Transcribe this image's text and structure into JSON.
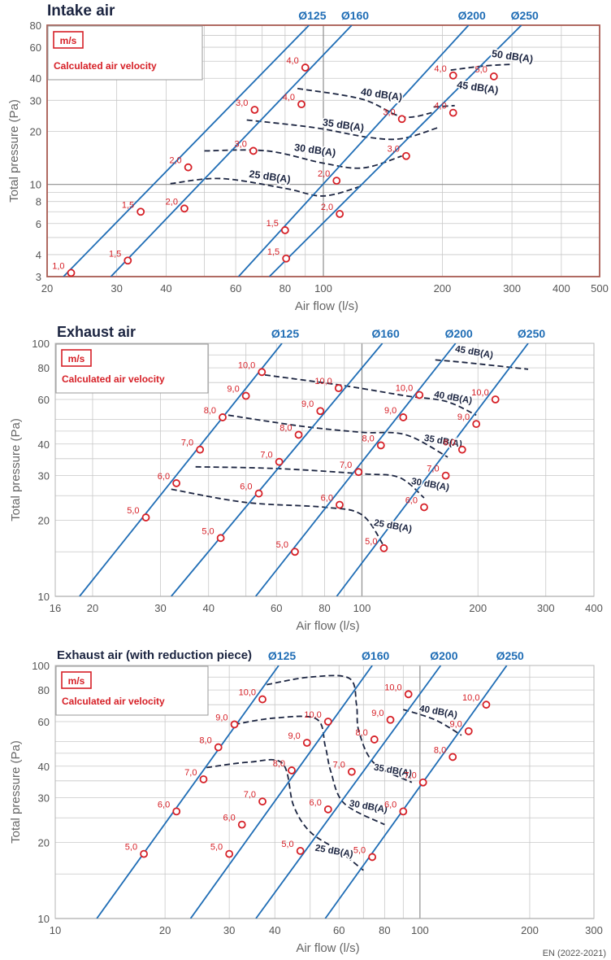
{
  "footer_code": "EN (2022-2021)",
  "colors": {
    "duct": "#1f6db5",
    "noise": "#1c2541",
    "marker": "#d62027",
    "grid": "#c8c8c8",
    "grid_major": "#8e8e8e",
    "frame_intake": "#a85a50"
  },
  "chart_data": [
    {
      "type": "line",
      "title": "Intake air",
      "xlabel": "Air flow (l/s)",
      "ylabel": "Total pressure (Pa)",
      "xscale": "log",
      "yscale": "log",
      "xlim": [
        20,
        500
      ],
      "ylim": [
        3,
        80
      ],
      "xticks": [
        20,
        30,
        40,
        60,
        80,
        100,
        200,
        300,
        400,
        500
      ],
      "yticks": [
        3,
        4,
        6,
        8,
        10,
        20,
        30,
        40,
        60,
        80
      ],
      "legend": {
        "box_label": "m/s",
        "text": "Calculated air velocity",
        "placement": "top-left"
      },
      "series": [
        {
          "name": "Ø125",
          "line": [
            [
              22,
              3.0
            ],
            [
              92,
              80
            ]
          ],
          "points": [
            {
              "v": "1,0",
              "x": 23,
              "y": 3.15
            },
            {
              "v": "1,5",
              "x": 34.5,
              "y": 7.0
            },
            {
              "v": "2,0",
              "x": 45.5,
              "y": 12.5
            },
            {
              "v": "3,0",
              "x": 67,
              "y": 26.5
            },
            {
              "v": "4,0",
              "x": 90,
              "y": 46
            }
          ]
        },
        {
          "name": "Ø160",
          "line": [
            [
              29,
              3.0
            ],
            [
              118,
              80
            ]
          ],
          "points": [
            {
              "v": "1,5",
              "x": 32,
              "y": 3.7
            },
            {
              "v": "2,0",
              "x": 44.5,
              "y": 7.3
            },
            {
              "v": "3,0",
              "x": 66.5,
              "y": 15.5
            },
            {
              "v": "4,0",
              "x": 88,
              "y": 28.5
            }
          ]
        },
        {
          "name": "Ø200",
          "line": [
            [
              61,
              3.0
            ],
            [
              233,
              80
            ]
          ],
          "points": [
            {
              "v": "1,5",
              "x": 80,
              "y": 5.5
            },
            {
              "v": "2,0",
              "x": 108,
              "y": 10.5
            },
            {
              "v": "3,0",
              "x": 158,
              "y": 23.5
            },
            {
              "v": "4,0",
              "x": 213,
              "y": 41.5
            }
          ]
        },
        {
          "name": "Ø250",
          "line": [
            [
              73,
              3.0
            ],
            [
              317,
              80
            ]
          ],
          "points": [
            {
              "v": "1,5",
              "x": 80.5,
              "y": 3.8
            },
            {
              "v": "2,0",
              "x": 110,
              "y": 6.8
            },
            {
              "v": "3,0",
              "x": 162,
              "y": 14.5
            },
            {
              "v": "4,0",
              "x": 213,
              "y": 25.5
            },
            {
              "v": "5,0",
              "x": 270,
              "y": 41
            }
          ]
        }
      ],
      "noise_curves": [
        {
          "label": "25 dB(A)",
          "pts": [
            [
              41,
              10.1
            ],
            [
              55,
              10.8
            ],
            [
              80,
              9.5
            ],
            [
              100,
              8.6
            ],
            [
              125,
              9.8
            ]
          ],
          "lx": 73,
          "ly": 10.6
        },
        {
          "label": "30 dB(A)",
          "pts": [
            [
              50,
              15.5
            ],
            [
              72,
              15.5
            ],
            [
              100,
              13.2
            ],
            [
              126,
              12.4
            ],
            [
              158,
              14.5
            ]
          ],
          "lx": 95,
          "ly": 15.0
        },
        {
          "label": "35 dB(A)",
          "pts": [
            [
              64,
              23.2
            ],
            [
              95,
              21.0
            ],
            [
              130,
              18.5
            ],
            [
              158,
              18.2
            ],
            [
              195,
              21.0
            ]
          ],
          "lx": 112,
          "ly": 20.8
        },
        {
          "label": "40 dB(A)",
          "pts": [
            [
              86,
              35.0
            ],
            [
              125,
              30.5
            ],
            [
              158,
              24.2
            ],
            [
              188,
              25.5
            ]
          ],
          "lx": 140,
          "ly": 31.0
        },
        {
          "label": "45 dB(A)",
          "pts": [
            [
              190,
              27.5
            ],
            [
              215,
              28.0
            ]
          ],
          "lx": 245,
          "ly": 34.0
        },
        {
          "label": "50 dB(A)",
          "pts": [
            [
              210,
              44.5
            ],
            [
              255,
              47.0
            ],
            [
              300,
              48.0
            ]
          ],
          "lx": 300,
          "ly": 51.0
        }
      ]
    },
    {
      "type": "line",
      "title": "Exhaust air",
      "xlabel": "Air flow (l/s)",
      "ylabel": "Total pressure (Pa)",
      "xscale": "log",
      "yscale": "log",
      "xlim": [
        16,
        400
      ],
      "ylim": [
        10,
        100
      ],
      "xticks": [
        16,
        20,
        30,
        40,
        60,
        80,
        100,
        200,
        300,
        400
      ],
      "yticks": [
        10,
        20,
        30,
        40,
        60,
        80,
        100
      ],
      "legend": {
        "box_label": "m/s",
        "text": "Calculated air velocity",
        "placement": "top-left"
      },
      "series": [
        {
          "name": "Ø125",
          "line": [
            [
              18.5,
              10
            ],
            [
              62,
              100
            ]
          ],
          "points": [
            {
              "v": "5,0",
              "x": 27.5,
              "y": 20.5
            },
            {
              "v": "6,0",
              "x": 33,
              "y": 28
            },
            {
              "v": "7,0",
              "x": 38,
              "y": 38
            },
            {
              "v": "8,0",
              "x": 43.5,
              "y": 51
            },
            {
              "v": "9,0",
              "x": 50,
              "y": 62
            },
            {
              "v": "10,0",
              "x": 55,
              "y": 77
            }
          ]
        },
        {
          "name": "Ø160",
          "line": [
            [
              32,
              10
            ],
            [
              113,
              100
            ]
          ],
          "points": [
            {
              "v": "5,0",
              "x": 43,
              "y": 17
            },
            {
              "v": "6,0",
              "x": 54,
              "y": 25.5
            },
            {
              "v": "7,0",
              "x": 61,
              "y": 34
            },
            {
              "v": "8,0",
              "x": 68.5,
              "y": 43.5
            },
            {
              "v": "9,0",
              "x": 78,
              "y": 54
            },
            {
              "v": "10,0",
              "x": 87,
              "y": 66.5
            }
          ]
        },
        {
          "name": "Ø200",
          "line": [
            [
              53,
              10
            ],
            [
              175,
              100
            ]
          ],
          "points": [
            {
              "v": "5,0",
              "x": 67,
              "y": 15
            },
            {
              "v": "6,0",
              "x": 87.5,
              "y": 23
            },
            {
              "v": "7,0",
              "x": 98,
              "y": 31
            },
            {
              "v": "8,0",
              "x": 112,
              "y": 39.5
            },
            {
              "v": "9,0",
              "x": 128,
              "y": 51
            },
            {
              "v": "10,0",
              "x": 141,
              "y": 62.5
            }
          ]
        },
        {
          "name": "Ø250",
          "line": [
            [
              86,
              10
            ],
            [
              270,
              100
            ]
          ],
          "points": [
            {
              "v": "5,0",
              "x": 114,
              "y": 15.5
            },
            {
              "v": "6,0",
              "x": 145,
              "y": 22.5
            },
            {
              "v": "7,0",
              "x": 165,
              "y": 30
            },
            {
              "v": "8,0",
              "x": 182,
              "y": 38
            },
            {
              "v": "9,0",
              "x": 198,
              "y": 48
            },
            {
              "v": "10,0",
              "x": 222,
              "y": 60
            }
          ]
        }
      ],
      "noise_curves": [
        {
          "label": "25 dB(A)",
          "pts": [
            [
              32,
              26.5
            ],
            [
              50,
              23.5
            ],
            [
              80,
              22.5
            ],
            [
              100,
              21.0
            ],
            [
              114,
              15.8
            ]
          ],
          "lx": 120,
          "ly": 18.5
        },
        {
          "label": "30 dB(A)",
          "pts": [
            [
              37,
              32.5
            ],
            [
              60,
              32.0
            ],
            [
              100,
              30.5
            ],
            [
              125,
              29.5
            ],
            [
              145,
              24.5
            ]
          ],
          "lx": 150,
          "ly": 27.0
        },
        {
          "label": "35 dB(A)",
          "pts": [
            [
              45,
              52.0
            ],
            [
              70,
              47.0
            ],
            [
              100,
              44.5
            ],
            [
              130,
              43.5
            ],
            [
              167,
              35.5
            ]
          ],
          "lx": 162,
          "ly": 40.0
        },
        {
          "label": "40 dB(A)",
          "pts": [
            [
              56,
              75.0
            ],
            [
              90,
              68.0
            ],
            [
              130,
              62.0
            ],
            [
              165,
              59.0
            ],
            [
              198,
              52.0
            ]
          ],
          "lx": 172,
          "ly": 59.5
        },
        {
          "label": "45 dB(A)",
          "pts": [
            [
              155,
              86.0
            ],
            [
              185,
              84.0
            ],
            [
              270,
              79.0
            ]
          ],
          "lx": 195,
          "ly": 90.0
        }
      ]
    },
    {
      "type": "line",
      "title": "Exhaust air (with reduction piece)",
      "xlabel": "Air flow (l/s)",
      "ylabel": "Total pressure (Pa)",
      "xscale": "log",
      "yscale": "log",
      "xlim": [
        10,
        300
      ],
      "ylim": [
        10,
        100
      ],
      "xticks": [
        10,
        20,
        30,
        40,
        60,
        80,
        100,
        200,
        300
      ],
      "yticks": [
        10,
        20,
        30,
        40,
        60,
        80,
        100
      ],
      "legend": {
        "box_label": "m/s",
        "text": "Calculated air velocity",
        "placement": "top-left"
      },
      "series": [
        {
          "name": "Ø125",
          "line": [
            [
              13,
              10
            ],
            [
              41,
              100
            ]
          ],
          "points": [
            {
              "v": "5,0",
              "x": 17.5,
              "y": 18
            },
            {
              "v": "6,0",
              "x": 21.5,
              "y": 26.5
            },
            {
              "v": "7,0",
              "x": 25.5,
              "y": 35.5
            },
            {
              "v": "8,0",
              "x": 28,
              "y": 47.5
            },
            {
              "v": "9,0",
              "x": 31,
              "y": 58.5
            },
            {
              "v": "10,0",
              "x": 37,
              "y": 73.5
            }
          ]
        },
        {
          "name": "Ø160",
          "line": [
            [
              23.5,
              10
            ],
            [
              74,
              100
            ]
          ],
          "points": [
            {
              "v": "5,0",
              "x": 30,
              "y": 18
            },
            {
              "v": "6,0",
              "x": 32.5,
              "y": 23.5
            },
            {
              "v": "7,0",
              "x": 37,
              "y": 29
            },
            {
              "v": "8,0",
              "x": 44.5,
              "y": 38.5
            },
            {
              "v": "9,0",
              "x": 49,
              "y": 49.5
            },
            {
              "v": "10,0",
              "x": 56,
              "y": 60
            }
          ]
        },
        {
          "name": "Ø200",
          "line": [
            [
              35.5,
              10
            ],
            [
              114,
              100
            ]
          ],
          "points": [
            {
              "v": "5,0",
              "x": 47,
              "y": 18.5
            },
            {
              "v": "6,0",
              "x": 56,
              "y": 27
            },
            {
              "v": "7,0",
              "x": 65,
              "y": 38
            },
            {
              "v": "8,0",
              "x": 75,
              "y": 51
            },
            {
              "v": "9,0",
              "x": 83,
              "y": 61
            },
            {
              "v": "10,0",
              "x": 93,
              "y": 77
            }
          ]
        },
        {
          "name": "Ø250",
          "line": [
            [
              55,
              10
            ],
            [
              173,
              100
            ]
          ],
          "points": [
            {
              "v": "5,0",
              "x": 74,
              "y": 17.5
            },
            {
              "v": "6,0",
              "x": 90,
              "y": 26.5
            },
            {
              "v": "7,0",
              "x": 102,
              "y": 34.5
            },
            {
              "v": "8,0",
              "x": 123,
              "y": 43.5
            },
            {
              "v": "9,0",
              "x": 136,
              "y": 55
            },
            {
              "v": "10,0",
              "x": 152,
              "y": 70
            }
          ]
        }
      ],
      "noise_curves": [
        {
          "label": "25 dB(A)",
          "pts": [
            [
              26,
              39.5
            ],
            [
              34,
              41.5
            ],
            [
              42,
              41.0
            ],
            [
              45,
              28.0
            ],
            [
              50,
              22.0
            ],
            [
              60,
              18.5
            ],
            [
              70,
              15.5
            ]
          ],
          "lx": 58,
          "ly": 18.0
        },
        {
          "label": "30 dB(A)",
          "pts": [
            [
              31,
              58.5
            ],
            [
              40,
              62.0
            ],
            [
              52,
              61.5
            ],
            [
              55,
              48.0
            ],
            [
              57,
              38.0
            ],
            [
              62,
              28.5
            ],
            [
              80,
              23.5
            ]
          ],
          "lx": 72,
          "ly": 27.0
        },
        {
          "label": "35 dB(A)",
          "pts": [
            [
              38,
              84.0
            ],
            [
              50,
              90.0
            ],
            [
              64,
              89.0
            ],
            [
              67,
              70.0
            ],
            [
              68,
              55.0
            ],
            [
              75,
              41.0
            ],
            [
              95,
              34.5
            ]
          ],
          "lx": 84,
          "ly": 37.5
        },
        {
          "label": "40 dB(A)",
          "pts": [
            [
              90,
              67.0
            ],
            [
              110,
              61.0
            ],
            [
              130,
              53.0
            ]
          ],
          "lx": 112,
          "ly": 64.0
        }
      ]
    }
  ]
}
